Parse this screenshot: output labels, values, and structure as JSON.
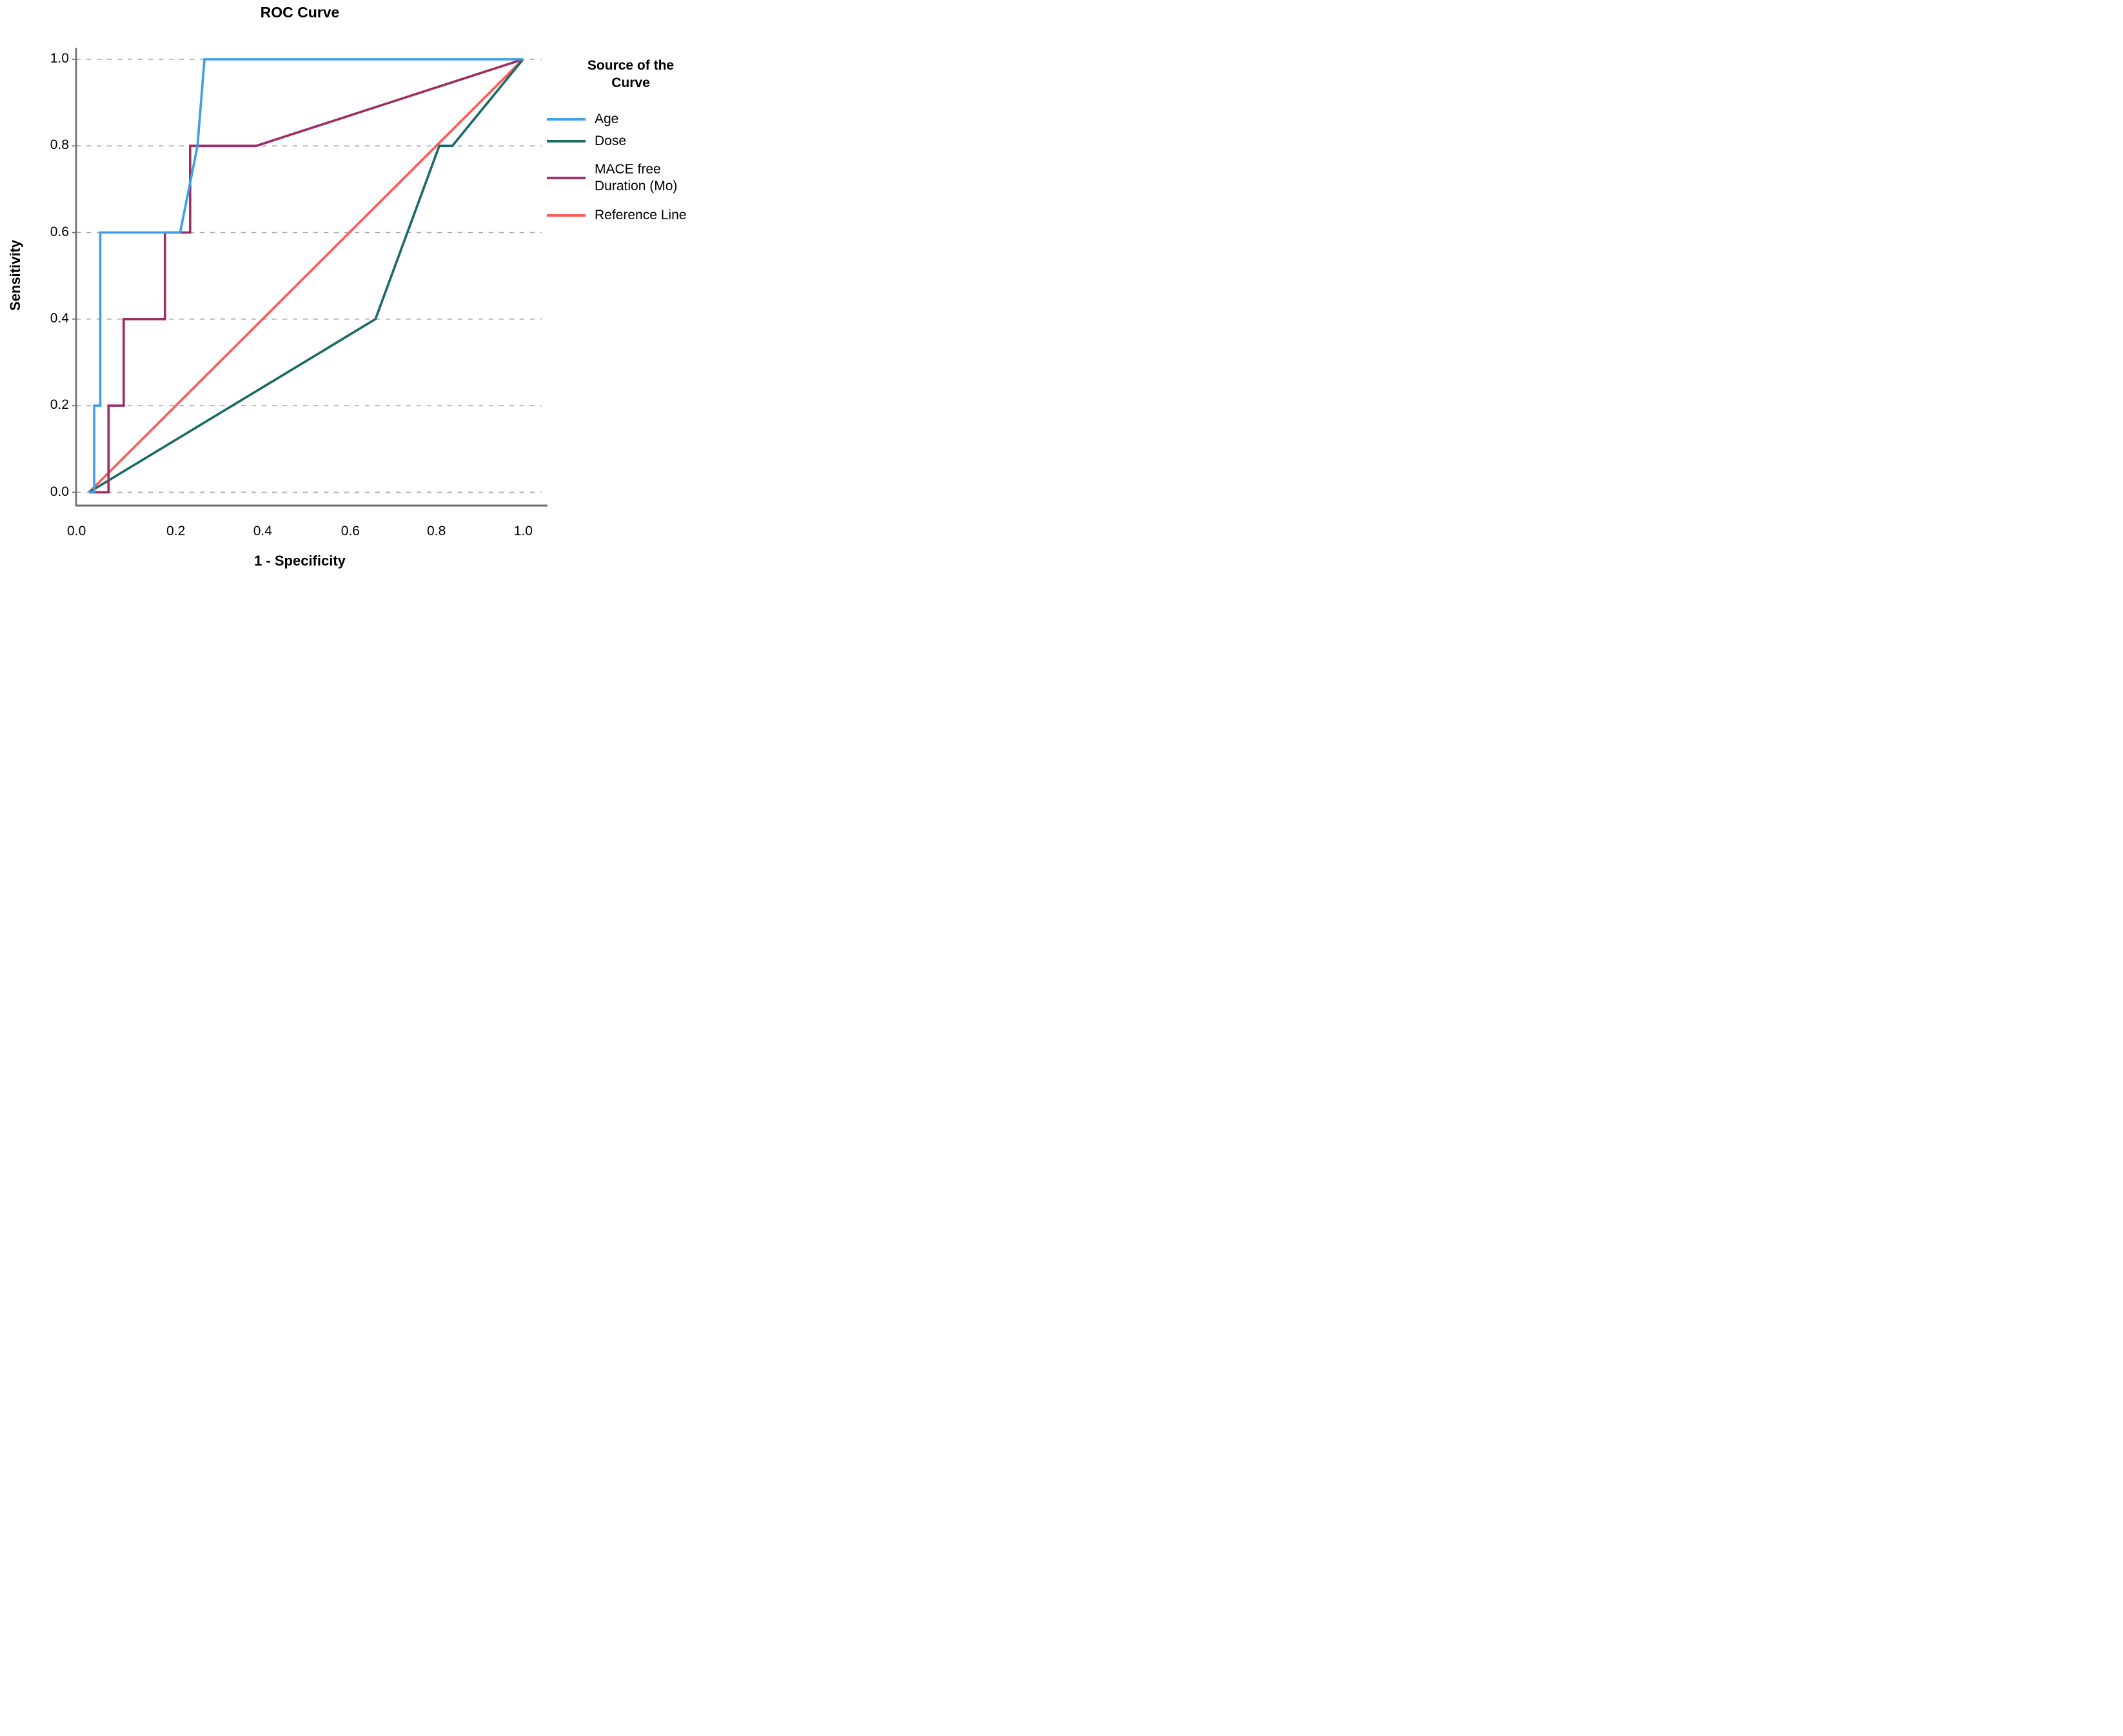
{
  "title": "ROC Curve",
  "axes": {
    "x": {
      "label": "1 - Specificity",
      "ticks": [
        "0.0",
        "0.2",
        "0.4",
        "0.6",
        "0.8",
        "1.0"
      ]
    },
    "y": {
      "label": "Sensitivity",
      "ticks": [
        "0.0",
        "0.2",
        "0.4",
        "0.6",
        "0.8",
        "1.0"
      ]
    }
  },
  "legend": {
    "title": "Source of the Curve",
    "items": [
      {
        "label": "Age",
        "label_lines": [
          "Age"
        ],
        "color": "#3FA0E6"
      },
      {
        "label": "Dose",
        "label_lines": [
          "Dose"
        ],
        "color": "#1A6A66"
      },
      {
        "label": "MACE free Duration (Mo)",
        "label_lines": [
          "MACE free",
          "Duration (Mo)"
        ],
        "color": "#A13168"
      },
      {
        "label": "Reference Line",
        "label_lines": [
          "Reference Line"
        ],
        "color": "#F95C5C"
      }
    ]
  },
  "colors": {
    "background": "#ffffff",
    "axis_line": "#6e6e6e",
    "gridline": "#acacac",
    "text": "#000000",
    "age": "#3FA0E6",
    "dose": "#1A6A66",
    "mace": "#9E2D62",
    "reference": "#F95C5C"
  },
  "chart_data": {
    "type": "line",
    "subtype": "roc-curve",
    "title": "ROC Curve",
    "xlabel": "1 - Specificity",
    "ylabel": "Sensitivity",
    "xlim": [
      0,
      1
    ],
    "ylim": [
      0,
      1
    ],
    "x_ticks": [
      0.0,
      0.2,
      0.4,
      0.6,
      0.8,
      1.0
    ],
    "y_ticks": [
      0.0,
      0.2,
      0.4,
      0.6,
      0.8,
      1.0
    ],
    "grid": "horizontal dashed lines only",
    "legend_position": "right",
    "legend_title": "Source of the Curve",
    "series": [
      {
        "name": "Age",
        "color": "#3FA0E6",
        "points": [
          [
            0,
            0
          ],
          [
            0.012,
            0
          ],
          [
            0.012,
            0.2
          ],
          [
            0.026,
            0.2
          ],
          [
            0.026,
            0.6
          ],
          [
            0.21,
            0.6
          ],
          [
            0.25,
            0.8
          ],
          [
            0.266,
            1.0
          ],
          [
            1,
            1
          ]
        ]
      },
      {
        "name": "Dose",
        "color": "#1A6A66",
        "points": [
          [
            0,
            0
          ],
          [
            0.66,
            0.4
          ],
          [
            0.807,
            0.8
          ],
          [
            0.837,
            0.8
          ],
          [
            1,
            1
          ]
        ]
      },
      {
        "name": "MACE free Duration (Mo)",
        "color": "#9E2D62",
        "points": [
          [
            0,
            0
          ],
          [
            0.045,
            0
          ],
          [
            0.045,
            0.2
          ],
          [
            0.08,
            0.2
          ],
          [
            0.08,
            0.4
          ],
          [
            0.175,
            0.4
          ],
          [
            0.175,
            0.6
          ],
          [
            0.233,
            0.6
          ],
          [
            0.233,
            0.8
          ],
          [
            0.385,
            0.8
          ],
          [
            1,
            1
          ]
        ]
      },
      {
        "name": "Reference Line",
        "color": "#F95C5C",
        "points": [
          [
            0,
            0
          ],
          [
            1,
            1
          ]
        ]
      }
    ]
  }
}
